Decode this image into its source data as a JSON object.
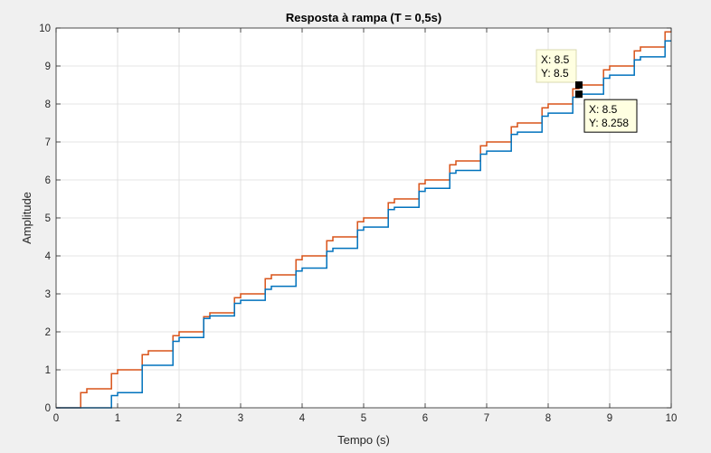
{
  "chart_data": {
    "type": "line",
    "title": "Resposta à rampa (T = 0,5s)",
    "xlabel": "Tempo (s)",
    "ylabel": "Amplitude",
    "xlim": [
      0,
      10
    ],
    "ylim": [
      0,
      10
    ],
    "xticks": [
      "0",
      "1",
      "2",
      "3",
      "4",
      "5",
      "6",
      "7",
      "8",
      "9",
      "10"
    ],
    "yticks": [
      "0",
      "1",
      "2",
      "3",
      "4",
      "5",
      "6",
      "7",
      "8",
      "9",
      "10"
    ],
    "grid": true,
    "colors": {
      "orange": "#d95319",
      "blue": "#0072bd",
      "tip_bg": "#ffffe1"
    },
    "series": [
      {
        "color": "#d95319",
        "steps": [
          {
            "t": 0,
            "v": 0
          },
          {
            "t": 0.4,
            "v": 0.4
          },
          {
            "t": 0.5,
            "v": 0.5
          },
          {
            "t": 0.9,
            "v": 0.9
          },
          {
            "t": 1.0,
            "v": 1.0
          },
          {
            "t": 1.4,
            "v": 1.4
          },
          {
            "t": 1.5,
            "v": 1.5
          },
          {
            "t": 1.9,
            "v": 1.9
          },
          {
            "t": 2.0,
            "v": 2.0
          },
          {
            "t": 2.4,
            "v": 2.4
          },
          {
            "t": 2.5,
            "v": 2.5
          },
          {
            "t": 2.9,
            "v": 2.9
          },
          {
            "t": 3.0,
            "v": 3.0
          },
          {
            "t": 3.4,
            "v": 3.4
          },
          {
            "t": 3.5,
            "v": 3.5
          },
          {
            "t": 3.9,
            "v": 3.9
          },
          {
            "t": 4.0,
            "v": 4.0
          },
          {
            "t": 4.4,
            "v": 4.4
          },
          {
            "t": 4.5,
            "v": 4.5
          },
          {
            "t": 4.9,
            "v": 4.9
          },
          {
            "t": 5.0,
            "v": 5.0
          },
          {
            "t": 5.4,
            "v": 5.4
          },
          {
            "t": 5.5,
            "v": 5.5
          },
          {
            "t": 5.9,
            "v": 5.9
          },
          {
            "t": 6.0,
            "v": 6.0
          },
          {
            "t": 6.4,
            "v": 6.4
          },
          {
            "t": 6.5,
            "v": 6.5
          },
          {
            "t": 6.9,
            "v": 6.9
          },
          {
            "t": 7.0,
            "v": 7.0
          },
          {
            "t": 7.4,
            "v": 7.4
          },
          {
            "t": 7.5,
            "v": 7.5
          },
          {
            "t": 7.9,
            "v": 7.9
          },
          {
            "t": 8.0,
            "v": 8.0
          },
          {
            "t": 8.4,
            "v": 8.4
          },
          {
            "t": 8.5,
            "v": 8.5
          },
          {
            "t": 8.9,
            "v": 8.9
          },
          {
            "t": 9.0,
            "v": 9.0
          },
          {
            "t": 9.4,
            "v": 9.4
          },
          {
            "t": 9.5,
            "v": 9.5
          },
          {
            "t": 9.9,
            "v": 9.9
          }
        ]
      },
      {
        "color": "#0072bd",
        "steps": [
          {
            "t": 0,
            "v": 0
          },
          {
            "t": 0.9,
            "v": 0.32
          },
          {
            "t": 1.0,
            "v": 0.4
          },
          {
            "t": 1.4,
            "v": 1.12
          },
          {
            "t": 1.9,
            "v": 1.75
          },
          {
            "t": 2.0,
            "v": 1.85
          },
          {
            "t": 2.4,
            "v": 2.35
          },
          {
            "t": 2.5,
            "v": 2.42
          },
          {
            "t": 2.9,
            "v": 2.75
          },
          {
            "t": 3.0,
            "v": 2.83
          },
          {
            "t": 3.4,
            "v": 3.12
          },
          {
            "t": 3.5,
            "v": 3.2
          },
          {
            "t": 3.9,
            "v": 3.6
          },
          {
            "t": 4.0,
            "v": 3.68
          },
          {
            "t": 4.4,
            "v": 4.12
          },
          {
            "t": 4.5,
            "v": 4.2
          },
          {
            "t": 4.9,
            "v": 4.68
          },
          {
            "t": 5.0,
            "v": 4.76
          },
          {
            "t": 5.4,
            "v": 5.22
          },
          {
            "t": 5.5,
            "v": 5.28
          },
          {
            "t": 5.9,
            "v": 5.7
          },
          {
            "t": 6.0,
            "v": 5.78
          },
          {
            "t": 6.4,
            "v": 6.18
          },
          {
            "t": 6.5,
            "v": 6.25
          },
          {
            "t": 6.9,
            "v": 6.68
          },
          {
            "t": 7.0,
            "v": 6.76
          },
          {
            "t": 7.4,
            "v": 7.2
          },
          {
            "t": 7.5,
            "v": 7.26
          },
          {
            "t": 7.9,
            "v": 7.68
          },
          {
            "t": 8.0,
            "v": 7.76
          },
          {
            "t": 8.4,
            "v": 8.18
          },
          {
            "t": 8.5,
            "v": 8.258
          },
          {
            "t": 8.9,
            "v": 8.68
          },
          {
            "t": 9.0,
            "v": 8.76
          },
          {
            "t": 9.4,
            "v": 9.16
          },
          {
            "t": 9.5,
            "v": 9.24
          },
          {
            "t": 9.9,
            "v": 9.66
          }
        ]
      }
    ],
    "datatips": [
      {
        "x": 8.5,
        "y": 8.5,
        "x_text": "X: 8.5",
        "y_text": "Y: 8.5",
        "placement": "upper-left"
      },
      {
        "x": 8.5,
        "y": 8.258,
        "x_text": "X: 8.5",
        "y_text": "Y: 8.258",
        "placement": "lower-right"
      }
    ]
  }
}
